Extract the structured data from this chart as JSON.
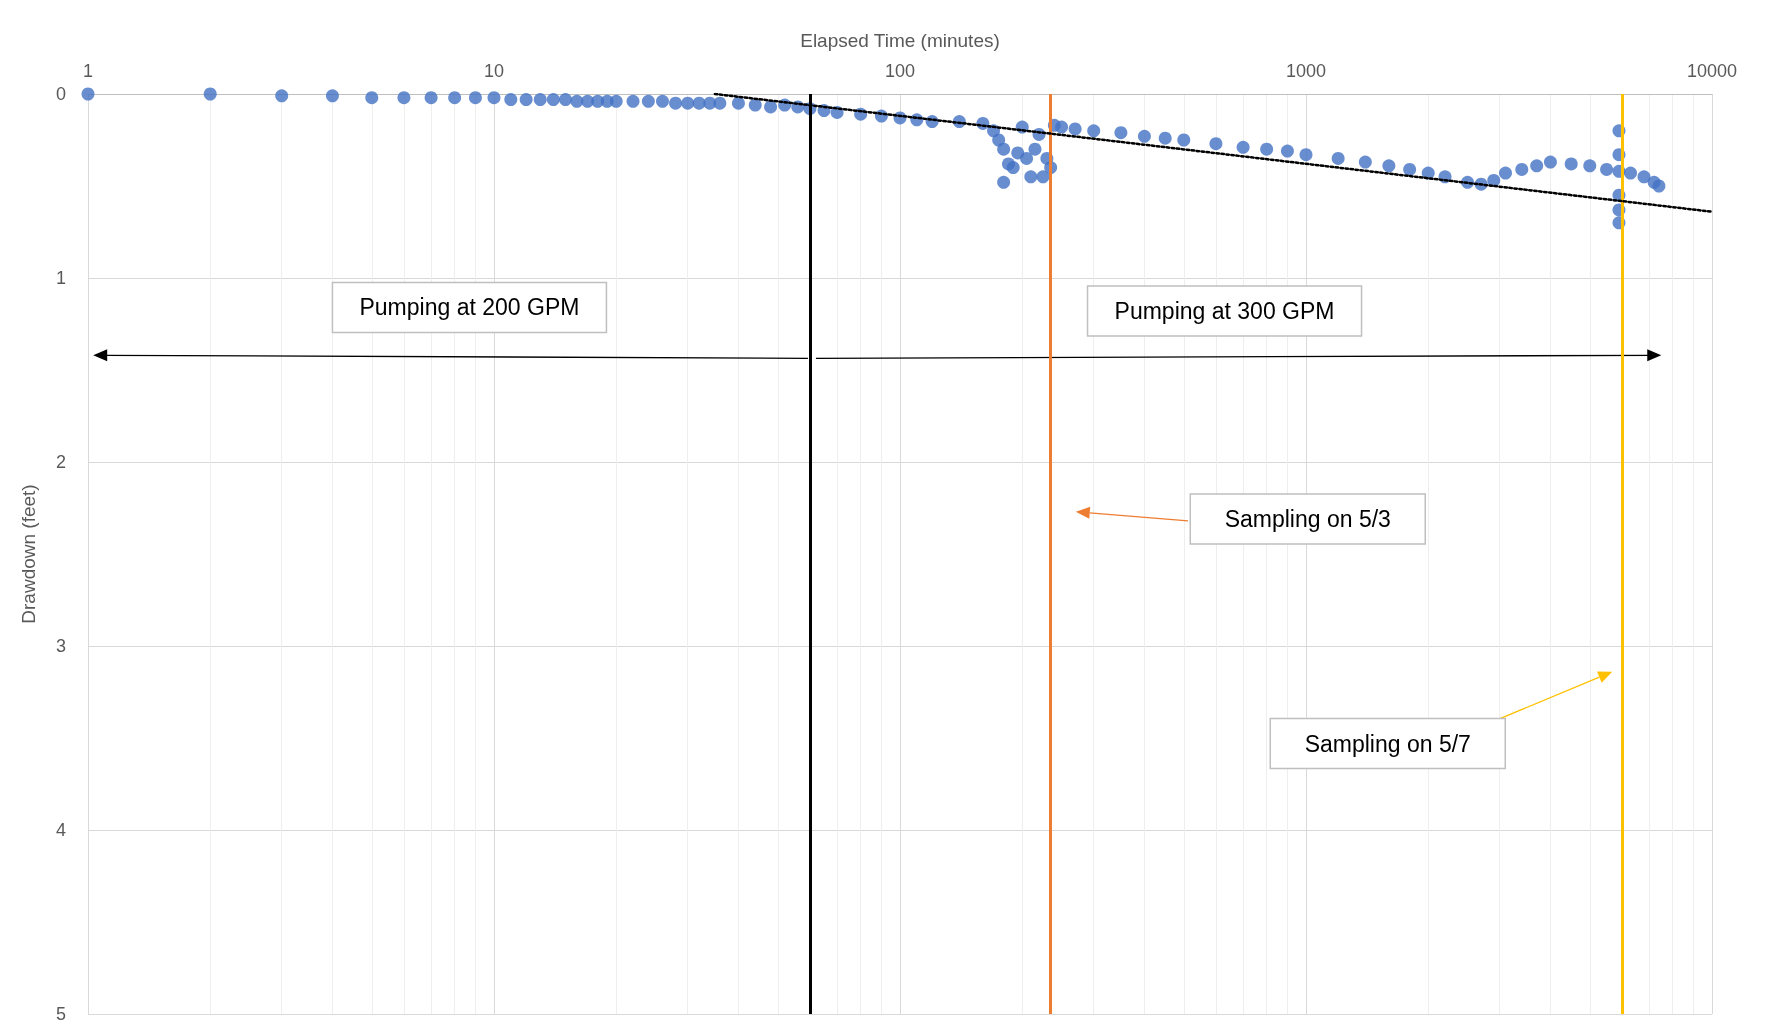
{
  "chart_data": {
    "type": "scatter",
    "xlabel": "Elapsed Time (minutes)",
    "ylabel": "Drawdown (feet)",
    "log": "x",
    "xlim": [
      1,
      10000
    ],
    "xticks": [
      1,
      10,
      100,
      1000,
      10000
    ],
    "ylim": [
      5,
      0
    ],
    "yticks": [
      0,
      1,
      2,
      3,
      4,
      5
    ],
    "grid": true,
    "marker": "circle",
    "series": [
      {
        "color": "#4472c4",
        "x": [
          1,
          2,
          3,
          4,
          5,
          6,
          7,
          8,
          9,
          10,
          11,
          12,
          13,
          14,
          15,
          16,
          17,
          18,
          19,
          20,
          22,
          24,
          26,
          28,
          30,
          32,
          34,
          36,
          40,
          44,
          48,
          52,
          56,
          60,
          65,
          70,
          80,
          90,
          100,
          110,
          120,
          140,
          160,
          170,
          175,
          180,
          180,
          185,
          190,
          195,
          200,
          205,
          210,
          215,
          220,
          225,
          230,
          235,
          240,
          250,
          270,
          300,
          350,
          400,
          450,
          500,
          600,
          700,
          800,
          900,
          1000,
          1200,
          1400,
          1600,
          1800,
          2000,
          2200,
          2500,
          2700,
          2900,
          3100,
          3400,
          3700,
          4000,
          4500,
          5000,
          5500,
          5900,
          5900,
          5900,
          5900,
          5900,
          5900,
          6300,
          6800,
          7200,
          7400
        ],
        "values": [
          0,
          0,
          0.01,
          0.01,
          0.02,
          0.02,
          0.02,
          0.02,
          0.02,
          0.02,
          0.03,
          0.03,
          0.03,
          0.03,
          0.03,
          0.04,
          0.04,
          0.04,
          0.04,
          0.04,
          0.04,
          0.04,
          0.04,
          0.05,
          0.05,
          0.05,
          0.05,
          0.05,
          0.05,
          0.06,
          0.07,
          0.06,
          0.07,
          0.08,
          0.09,
          0.1,
          0.11,
          0.12,
          0.13,
          0.14,
          0.15,
          0.15,
          0.16,
          0.2,
          0.25,
          0.3,
          0.48,
          0.38,
          0.4,
          0.32,
          0.18,
          0.35,
          0.45,
          0.3,
          0.22,
          0.45,
          0.35,
          0.4,
          0.17,
          0.18,
          0.19,
          0.2,
          0.21,
          0.23,
          0.24,
          0.25,
          0.27,
          0.29,
          0.3,
          0.31,
          0.33,
          0.35,
          0.37,
          0.39,
          0.41,
          0.43,
          0.45,
          0.48,
          0.49,
          0.47,
          0.43,
          0.41,
          0.39,
          0.37,
          0.38,
          0.39,
          0.41,
          0.2,
          0.33,
          0.42,
          0.55,
          0.63,
          0.7,
          0.43,
          0.45,
          0.48,
          0.5
        ]
      },
      {
        "type": "line",
        "color": "#000000",
        "line_style": "dotted",
        "marker": "none",
        "x": [
          35,
          10000
        ],
        "values": [
          0,
          0.64
        ]
      }
    ],
    "ref_lines": [
      {
        "axis": "x",
        "value": 60,
        "color": "#000000"
      },
      {
        "axis": "x",
        "value": 235,
        "color": "#ed7d31"
      },
      {
        "axis": "x",
        "value": 6000,
        "color": "#ffc000"
      }
    ],
    "annotations": [
      "Pumping at 200 GPM",
      "Pumping at 300 GPM",
      "Sampling on 5/3",
      "Sampling on 5/7"
    ]
  }
}
